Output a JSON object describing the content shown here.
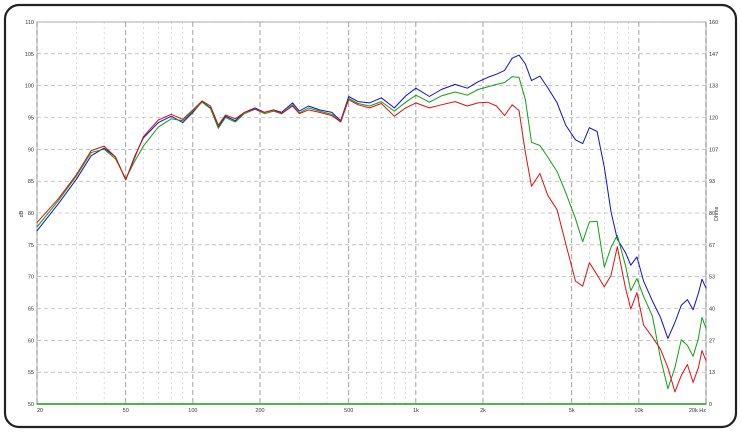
{
  "chart_data": {
    "type": "line",
    "x_scale": "log",
    "xlim": [
      20,
      20000
    ],
    "ylim": [
      50,
      110
    ],
    "y2lim": [
      0,
      160
    ],
    "ylabel": "dB",
    "y2label": "Ohms",
    "grid": true,
    "x_ticks": [
      {
        "value": 20,
        "label": "20"
      },
      {
        "value": 50,
        "label": "50"
      },
      {
        "value": 100,
        "label": "100"
      },
      {
        "value": 200,
        "label": "200"
      },
      {
        "value": 500,
        "label": "500"
      },
      {
        "value": 1000,
        "label": "1k"
      },
      {
        "value": 2000,
        "label": "2k"
      },
      {
        "value": 5000,
        "label": "5k"
      },
      {
        "value": 10000,
        "label": "10k"
      },
      {
        "value": 20000,
        "label": "20k Hz"
      }
    ],
    "y_ticks": [
      50,
      55,
      60,
      65,
      70,
      75,
      80,
      85,
      90,
      95,
      100,
      105,
      110
    ],
    "y2_ticks": [
      {
        "value": 0,
        "label": "0"
      },
      {
        "value": 13.3,
        "label": "13"
      },
      {
        "value": 26.7,
        "label": "27"
      },
      {
        "value": 40,
        "label": "40"
      },
      {
        "value": 53.3,
        "label": "53"
      },
      {
        "value": 66.7,
        "label": "67"
      },
      {
        "value": 80,
        "label": "80"
      },
      {
        "value": 93.3,
        "label": "93"
      },
      {
        "value": 106.7,
        "label": "107"
      },
      {
        "value": 120,
        "label": "120"
      },
      {
        "value": 133.3,
        "label": "133"
      },
      {
        "value": 146.7,
        "label": "147"
      },
      {
        "value": 160,
        "label": "160"
      }
    ],
    "series": [
      {
        "color": "#1010d0",
        "points": [
          [
            20,
            77.2
          ],
          [
            25,
            81.5
          ],
          [
            30,
            85.3
          ],
          [
            35,
            89
          ],
          [
            40,
            90.2
          ],
          [
            45,
            88.8
          ],
          [
            50,
            85.2
          ],
          [
            55,
            89
          ],
          [
            60,
            91.8
          ],
          [
            70,
            94.2
          ],
          [
            80,
            95.2
          ],
          [
            90,
            94.2
          ],
          [
            100,
            95.8
          ],
          [
            110,
            97.5
          ],
          [
            120,
            96.5
          ],
          [
            130,
            93.5
          ],
          [
            140,
            95.2
          ],
          [
            155,
            94.5
          ],
          [
            170,
            95.8
          ],
          [
            190,
            96.5
          ],
          [
            210,
            95.8
          ],
          [
            230,
            96.2
          ],
          [
            250,
            95.8
          ],
          [
            280,
            97.3
          ],
          [
            300,
            96
          ],
          [
            330,
            96.8
          ],
          [
            370,
            96.2
          ],
          [
            420,
            95.8
          ],
          [
            460,
            94.5
          ],
          [
            500,
            98.3
          ],
          [
            550,
            97.5
          ],
          [
            620,
            97.3
          ],
          [
            700,
            98.1
          ],
          [
            800,
            96.5
          ],
          [
            900,
            98.4
          ],
          [
            1000,
            99.6
          ],
          [
            1150,
            98.3
          ],
          [
            1300,
            99.4
          ],
          [
            1500,
            100.2
          ],
          [
            1700,
            99.6
          ],
          [
            1900,
            100.6
          ],
          [
            2100,
            101.3
          ],
          [
            2300,
            101.8
          ],
          [
            2500,
            102.4
          ],
          [
            2700,
            104.3
          ],
          [
            2900,
            104.8
          ],
          [
            3100,
            103.4
          ],
          [
            3300,
            100.8
          ],
          [
            3600,
            101.5
          ],
          [
            3900,
            99.7
          ],
          [
            4300,
            97.3
          ],
          [
            4700,
            93.8
          ],
          [
            5200,
            91.5
          ],
          [
            5600,
            90.9
          ],
          [
            6000,
            93.4
          ],
          [
            6500,
            92.8
          ],
          [
            7000,
            87.2
          ],
          [
            7500,
            80.2
          ],
          [
            8000,
            75.9
          ],
          [
            8700,
            73.8
          ],
          [
            9200,
            71.8
          ],
          [
            9800,
            73.1
          ],
          [
            10500,
            69.3
          ],
          [
            11500,
            66.2
          ],
          [
            12500,
            63.6
          ],
          [
            13500,
            60.3
          ],
          [
            14500,
            62.8
          ],
          [
            15500,
            65.5
          ],
          [
            16500,
            66.4
          ],
          [
            17500,
            64.8
          ],
          [
            18500,
            67.4
          ],
          [
            19200,
            69.6
          ],
          [
            20000,
            68.2
          ]
        ]
      },
      {
        "color": "#10a010",
        "points": [
          [
            20,
            77.8
          ],
          [
            25,
            82
          ],
          [
            30,
            85.8
          ],
          [
            35,
            89.5
          ],
          [
            40,
            90
          ],
          [
            45,
            88.5
          ],
          [
            50,
            85.4
          ],
          [
            55,
            88.2
          ],
          [
            60,
            90.5
          ],
          [
            70,
            93.5
          ],
          [
            80,
            94.8
          ],
          [
            90,
            94.5
          ],
          [
            100,
            96
          ],
          [
            110,
            97.4
          ],
          [
            120,
            96.4
          ],
          [
            130,
            93.3
          ],
          [
            140,
            95
          ],
          [
            155,
            94.3
          ],
          [
            170,
            95.6
          ],
          [
            190,
            96.3
          ],
          [
            210,
            95.6
          ],
          [
            230,
            96
          ],
          [
            250,
            95.6
          ],
          [
            280,
            97
          ],
          [
            300,
            95.7
          ],
          [
            330,
            96.5
          ],
          [
            370,
            96
          ],
          [
            420,
            95.5
          ],
          [
            460,
            94.3
          ],
          [
            500,
            98
          ],
          [
            550,
            97.2
          ],
          [
            620,
            96.8
          ],
          [
            700,
            97.5
          ],
          [
            800,
            96
          ],
          [
            900,
            97.4
          ],
          [
            1000,
            98.5
          ],
          [
            1150,
            97.4
          ],
          [
            1300,
            98.4
          ],
          [
            1500,
            99
          ],
          [
            1700,
            98.5
          ],
          [
            1900,
            99.4
          ],
          [
            2100,
            99.8
          ],
          [
            2300,
            100.2
          ],
          [
            2500,
            100.5
          ],
          [
            2700,
            101.4
          ],
          [
            2900,
            101.3
          ],
          [
            3100,
            97.8
          ],
          [
            3300,
            91.1
          ],
          [
            3600,
            90.6
          ],
          [
            3900,
            88.8
          ],
          [
            4300,
            86.5
          ],
          [
            4700,
            83.2
          ],
          [
            5200,
            79.1
          ],
          [
            5600,
            75.5
          ],
          [
            6000,
            78.6
          ],
          [
            6500,
            78.7
          ],
          [
            7000,
            71.5
          ],
          [
            7500,
            74.6
          ],
          [
            8000,
            76.5
          ],
          [
            8700,
            71.8
          ],
          [
            9200,
            67.8
          ],
          [
            9800,
            69.7
          ],
          [
            10500,
            66.9
          ],
          [
            11500,
            63.8
          ],
          [
            12500,
            57.2
          ],
          [
            13500,
            52.4
          ],
          [
            14500,
            55.7
          ],
          [
            15500,
            60.1
          ],
          [
            16500,
            59.2
          ],
          [
            17500,
            57.5
          ],
          [
            18500,
            60.3
          ],
          [
            19200,
            63.6
          ],
          [
            20000,
            61.9
          ]
        ]
      },
      {
        "color": "#e01010",
        "points": [
          [
            20,
            78.5
          ],
          [
            25,
            82.3
          ],
          [
            30,
            86
          ],
          [
            35,
            89.8
          ],
          [
            40,
            90.5
          ],
          [
            45,
            88.8
          ],
          [
            50,
            85.2
          ],
          [
            55,
            88.8
          ],
          [
            60,
            92
          ],
          [
            70,
            94.6
          ],
          [
            80,
            95.5
          ],
          [
            90,
            94.7
          ],
          [
            100,
            96.2
          ],
          [
            110,
            97.6
          ],
          [
            120,
            96.8
          ],
          [
            130,
            93.8
          ],
          [
            140,
            95.4
          ],
          [
            155,
            94.8
          ],
          [
            170,
            95.8
          ],
          [
            190,
            96.3
          ],
          [
            210,
            95.8
          ],
          [
            230,
            96.2
          ],
          [
            250,
            95.6
          ],
          [
            280,
            96.8
          ],
          [
            300,
            95.6
          ],
          [
            330,
            96.2
          ],
          [
            370,
            95.8
          ],
          [
            420,
            95.3
          ],
          [
            460,
            94.3
          ],
          [
            500,
            97.8
          ],
          [
            550,
            97
          ],
          [
            620,
            96.5
          ],
          [
            700,
            97.2
          ],
          [
            800,
            95.2
          ],
          [
            900,
            96.5
          ],
          [
            1000,
            97.3
          ],
          [
            1150,
            96.5
          ],
          [
            1300,
            97
          ],
          [
            1500,
            97.5
          ],
          [
            1700,
            96.8
          ],
          [
            1900,
            97.3
          ],
          [
            2100,
            97.4
          ],
          [
            2300,
            96.8
          ],
          [
            2500,
            95.3
          ],
          [
            2700,
            97
          ],
          [
            2900,
            96.1
          ],
          [
            3100,
            89.5
          ],
          [
            3300,
            84.2
          ],
          [
            3600,
            86.2
          ],
          [
            3900,
            82.8
          ],
          [
            4300,
            80.5
          ],
          [
            4700,
            75.2
          ],
          [
            5200,
            69.3
          ],
          [
            5600,
            68.5
          ],
          [
            6000,
            72.2
          ],
          [
            6500,
            70.3
          ],
          [
            7000,
            68.4
          ],
          [
            7500,
            70.2
          ],
          [
            8000,
            74.7
          ],
          [
            8700,
            68.3
          ],
          [
            9200,
            64.9
          ],
          [
            9800,
            67.5
          ],
          [
            10500,
            62.4
          ],
          [
            11500,
            60.5
          ],
          [
            12500,
            58.6
          ],
          [
            13500,
            55.7
          ],
          [
            14500,
            51.9
          ],
          [
            15500,
            54.5
          ],
          [
            16500,
            56.2
          ],
          [
            17500,
            53.4
          ],
          [
            18500,
            55.7
          ],
          [
            19200,
            58.4
          ],
          [
            20000,
            56.8
          ]
        ]
      },
      {
        "color": "#10a010",
        "axis": "y2",
        "points": [
          [
            20,
            0
          ],
          [
            20000,
            0
          ]
        ]
      }
    ]
  }
}
